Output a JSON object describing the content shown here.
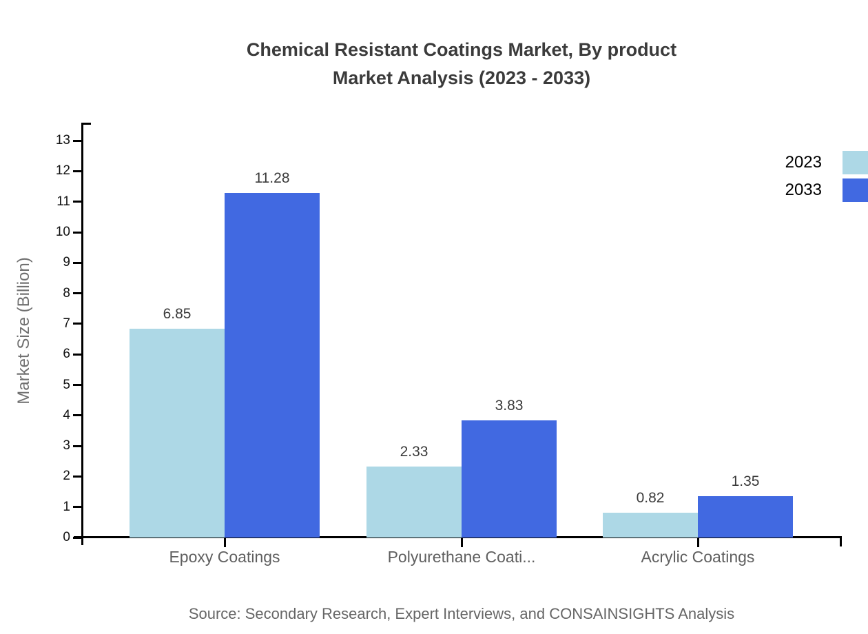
{
  "title": {
    "line1": "Chemical Resistant Coatings Market, By product",
    "line2": "Market Analysis (2023 - 2033)"
  },
  "source": "Source: Secondary Research, Expert Interviews, and CONSAINSIGHTS Analysis",
  "colors": {
    "series_2023": "#ADD8E6",
    "series_2033": "#4169E1",
    "axis": "#000000",
    "title_text": "#3b3b3b",
    "category_text": "#5f5f5f",
    "tick_text": "#111111",
    "value_text": "#3a3a3a",
    "muted_text": "#666666"
  },
  "chart_data": {
    "type": "bar",
    "title": "Chemical Resistant Coatings Market, By product Market Analysis (2023 - 2033)",
    "categories": [
      "Epoxy Coatings",
      "Polyurethane Coati...",
      "Acrylic Coatings"
    ],
    "series": [
      {
        "name": "2023",
        "color": "#ADD8E6",
        "values": [
          6.85,
          2.33,
          0.82
        ]
      },
      {
        "name": "2033",
        "color": "#4169E1",
        "values": [
          11.28,
          3.83,
          1.35
        ]
      }
    ],
    "value_labels": [
      "6.85",
      "11.28",
      "2.33",
      "3.83",
      "0.82",
      "1.35"
    ],
    "xlabel": "",
    "ylabel": "Market Size (Billion)",
    "ylim": [
      0,
      13
    ],
    "yticks": [
      0,
      1,
      2,
      3,
      4,
      5,
      6,
      7,
      8,
      9,
      10,
      11,
      12,
      13
    ],
    "grid": false,
    "legend_position": "top-right",
    "legend_labels": [
      "2023",
      "2033"
    ]
  }
}
